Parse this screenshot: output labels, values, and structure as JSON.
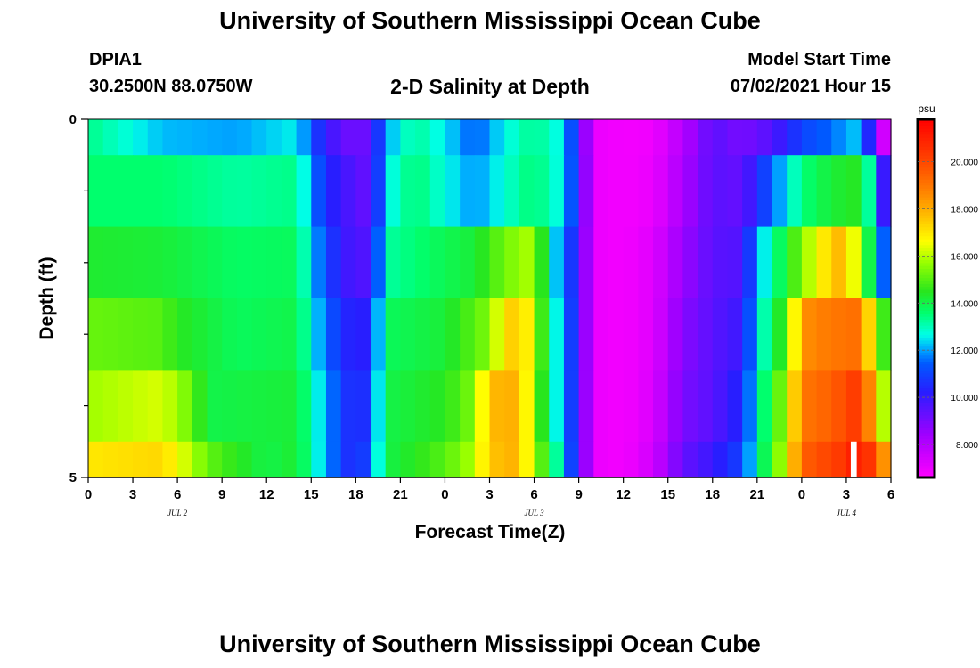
{
  "header": {
    "title": "University of Southern Mississippi Ocean Cube",
    "station_id": "DPIA1",
    "station_coords": "30.2500N  88.0750W",
    "plot_title": "2-D Salinity at Depth",
    "model_start_label": "Model Start Time",
    "model_start_value": "07/02/2021 Hour 15"
  },
  "footer": {
    "title": "University of Southern Mississippi Ocean Cube"
  },
  "chart_data": {
    "type": "heatmap",
    "title": "2-D Salinity at Depth",
    "xlabel": "Forecast Time(Z)",
    "ylabel": "Depth (ft)",
    "x_tick_labels": [
      "0",
      "3",
      "6",
      "9",
      "12",
      "15",
      "18",
      "21",
      "0",
      "3",
      "6",
      "9",
      "12",
      "15",
      "18",
      "21",
      "0",
      "3",
      "6"
    ],
    "day_labels": [
      "JUL 2",
      "JUL 3",
      "JUL 4"
    ],
    "y_tick_labels": [
      "0",
      "5"
    ],
    "ylim": [
      0,
      5
    ],
    "colorbar": {
      "unit": "psu",
      "tick_labels": [
        "8.000",
        "10.000",
        "12.000",
        "14.000",
        "16.000",
        "18.000",
        "20.000"
      ],
      "range": [
        6.6,
        21.8
      ]
    },
    "depth_layer_bounds": [
      0,
      0.5,
      1.5,
      2.5,
      3.5,
      4.5,
      5.0
    ],
    "layer_keyframes": [
      [
        [
          0,
          13.4
        ],
        [
          5,
          12.2
        ],
        [
          10,
          12.0
        ],
        [
          14,
          12.6
        ],
        [
          16,
          10.0
        ],
        [
          18,
          9.0
        ],
        [
          19,
          9.5
        ],
        [
          20,
          12.0
        ],
        [
          22,
          13.3
        ],
        [
          24,
          12.5
        ],
        [
          26,
          11.4
        ],
        [
          28,
          12.6
        ],
        [
          30,
          13.4
        ],
        [
          32,
          12.5
        ],
        [
          33,
          10.0
        ],
        [
          34,
          7.0
        ],
        [
          36,
          6.8
        ],
        [
          38,
          6.9
        ],
        [
          40,
          8.0
        ],
        [
          42,
          9.5
        ],
        [
          44,
          9.0
        ],
        [
          46,
          9.6
        ],
        [
          48,
          11.0
        ],
        [
          50,
          11.6
        ],
        [
          52,
          12.4
        ],
        [
          53,
          8.5
        ],
        [
          54,
          6.5
        ]
      ],
      [
        [
          0,
          13.6
        ],
        [
          5,
          13.6
        ],
        [
          10,
          13.2
        ],
        [
          14,
          13.4
        ],
        [
          16,
          10.5
        ],
        [
          18,
          9.5
        ],
        [
          19,
          9.3
        ],
        [
          20,
          12.5
        ],
        [
          22,
          13.6
        ],
        [
          24,
          12.7
        ],
        [
          26,
          11.9
        ],
        [
          28,
          12.8
        ],
        [
          30,
          13.6
        ],
        [
          32,
          12.5
        ],
        [
          33,
          10.2
        ],
        [
          34,
          7.0
        ],
        [
          36,
          6.8
        ],
        [
          38,
          7.0
        ],
        [
          40,
          8.2
        ],
        [
          42,
          9.5
        ],
        [
          44,
          9.3
        ],
        [
          46,
          11.5
        ],
        [
          48,
          13.5
        ],
        [
          50,
          14.2
        ],
        [
          52,
          14.5
        ],
        [
          53,
          12.0
        ],
        [
          54,
          8.0
        ]
      ],
      [
        [
          0,
          14.3
        ],
        [
          5,
          14.2
        ],
        [
          10,
          13.7
        ],
        [
          14,
          13.8
        ],
        [
          16,
          11.0
        ],
        [
          18,
          9.5
        ],
        [
          19,
          9.8
        ],
        [
          20,
          13.2
        ],
        [
          24,
          13.9
        ],
        [
          26,
          14.2
        ],
        [
          28,
          15.3
        ],
        [
          30,
          16.0
        ],
        [
          31,
          13.0
        ],
        [
          33,
          10.0
        ],
        [
          34,
          7.0
        ],
        [
          36,
          6.8
        ],
        [
          38,
          7.2
        ],
        [
          40,
          8.5
        ],
        [
          42,
          9.5
        ],
        [
          44,
          9.6
        ],
        [
          45,
          12.0
        ],
        [
          48,
          15.5
        ],
        [
          50,
          17.5
        ],
        [
          51,
          18.0
        ],
        [
          52,
          15.0
        ],
        [
          53,
          13.0
        ],
        [
          54,
          10.0
        ]
      ],
      [
        [
          0,
          15.2
        ],
        [
          5,
          15.0
        ],
        [
          6,
          14.5
        ],
        [
          10,
          13.8
        ],
        [
          14,
          14.0
        ],
        [
          16,
          11.5
        ],
        [
          18,
          10.0
        ],
        [
          19,
          10.5
        ],
        [
          20,
          13.8
        ],
        [
          24,
          14.2
        ],
        [
          27,
          15.5
        ],
        [
          28,
          17.0
        ],
        [
          29,
          17.8
        ],
        [
          30,
          16.0
        ],
        [
          31,
          13.5
        ],
        [
          33,
          10.0
        ],
        [
          34,
          7.0
        ],
        [
          36,
          6.8
        ],
        [
          38,
          7.2
        ],
        [
          40,
          8.8
        ],
        [
          42,
          9.5
        ],
        [
          44,
          10.0
        ],
        [
          45,
          12.5
        ],
        [
          47,
          15.0
        ],
        [
          48,
          18.5
        ],
        [
          50,
          19.0
        ],
        [
          52,
          19.2
        ],
        [
          53,
          15.5
        ],
        [
          54,
          14.0
        ]
      ],
      [
        [
          0,
          15.8
        ],
        [
          5,
          16.3
        ],
        [
          7,
          15.2
        ],
        [
          8,
          14.0
        ],
        [
          14,
          14.2
        ],
        [
          16,
          12.0
        ],
        [
          18,
          10.2
        ],
        [
          19,
          11.0
        ],
        [
          20,
          14.0
        ],
        [
          24,
          14.5
        ],
        [
          26,
          15.5
        ],
        [
          27,
          17.8
        ],
        [
          29,
          18.0
        ],
        [
          30,
          15.5
        ],
        [
          31,
          13.5
        ],
        [
          33,
          10.0
        ],
        [
          34,
          7.0
        ],
        [
          36,
          6.8
        ],
        [
          38,
          7.3
        ],
        [
          40,
          9.0
        ],
        [
          42,
          9.5
        ],
        [
          44,
          10.5
        ],
        [
          45,
          12.8
        ],
        [
          47,
          16.0
        ],
        [
          48,
          19.0
        ],
        [
          50,
          19.5
        ],
        [
          52,
          20.5
        ],
        [
          53,
          17.0
        ],
        [
          54,
          15.0
        ]
      ],
      [
        [
          0,
          17.0
        ],
        [
          5,
          17.3
        ],
        [
          8,
          15.2
        ],
        [
          9,
          14.8
        ],
        [
          12,
          14.0
        ],
        [
          14,
          14.3
        ],
        [
          16,
          12.0
        ],
        [
          18,
          10.2
        ],
        [
          19,
          11.5
        ],
        [
          20,
          14.0
        ],
        [
          24,
          15.0
        ],
        [
          26,
          16.0
        ],
        [
          27,
          17.6
        ],
        [
          29,
          18.0
        ],
        [
          30,
          15.5
        ],
        [
          31,
          14.5
        ],
        [
          32,
          12.0
        ],
        [
          33,
          10.0
        ],
        [
          34,
          7.0
        ],
        [
          36,
          6.8
        ],
        [
          38,
          7.5
        ],
        [
          40,
          9.3
        ],
        [
          42,
          10.0
        ],
        [
          44,
          11.0
        ],
        [
          45,
          13.0
        ],
        [
          47,
          16.5
        ],
        [
          48,
          19.5
        ],
        [
          51,
          20.5
        ],
        [
          52,
          21.5
        ],
        [
          53,
          19.5
        ],
        [
          54,
          17.5
        ]
      ]
    ],
    "gaps": [
      {
        "layer": 5,
        "x_start": 51.3,
        "x_end": 51.7
      }
    ]
  }
}
